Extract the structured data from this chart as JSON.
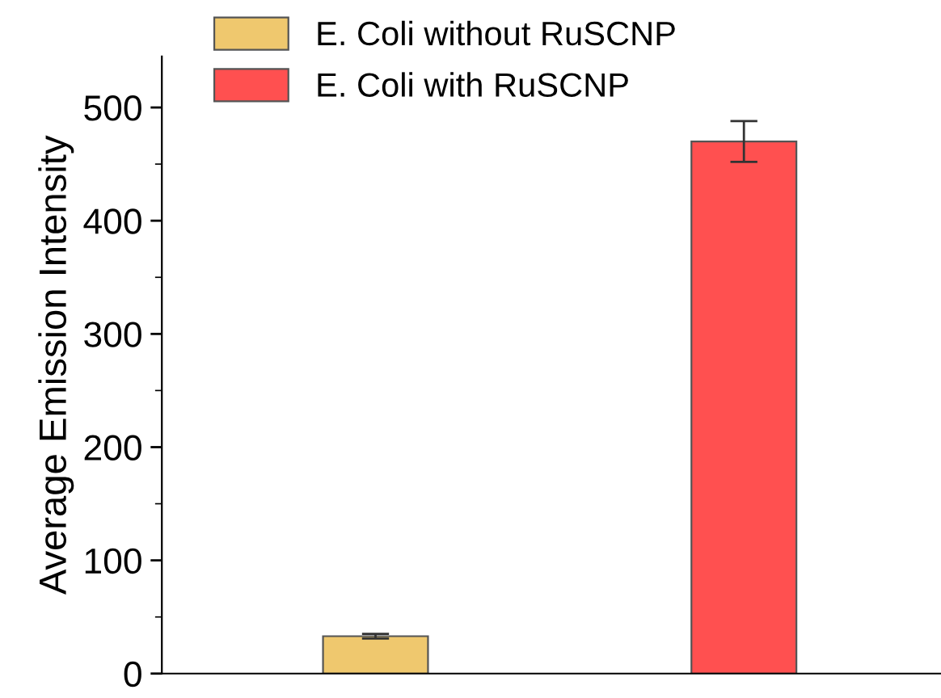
{
  "chart_data": {
    "type": "bar",
    "ylabel": "Average Emission Intensity",
    "categories": [
      null,
      null
    ],
    "series": [
      {
        "name": "E. Coli without RuSCNP",
        "color": "#efc86e",
        "values": [
          33,
          null
        ],
        "errors": [
          2,
          null
        ]
      },
      {
        "name": "E. Coli with RuSCNP",
        "color": "#ff5050",
        "values": [
          null,
          470
        ],
        "errors": [
          null,
          18
        ]
      }
    ],
    "ylim": [
      0,
      545
    ],
    "yticks": [
      0,
      100,
      200,
      300,
      400,
      500
    ],
    "grid": false,
    "legend": "top left"
  }
}
